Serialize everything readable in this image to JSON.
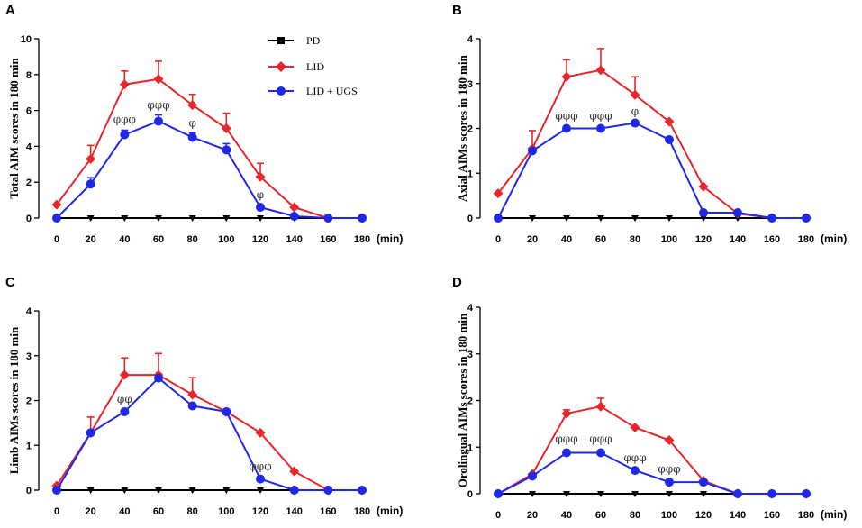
{
  "legend": [
    {
      "label": "PD",
      "color": "#000000",
      "marker": "square"
    },
    {
      "label": "LID",
      "color": "#e8252b",
      "marker": "diamond"
    },
    {
      "label": "LID + UGS",
      "color": "#1f27e8",
      "marker": "circle"
    }
  ],
  "x_unit": "(min)",
  "chart_data": [
    {
      "panel": "A",
      "type": "line",
      "ylabel": "Total AIM scores in 180 min",
      "x": [
        0,
        20,
        40,
        60,
        80,
        100,
        120,
        140,
        160,
        180
      ],
      "xticks": [
        "0",
        "20",
        "40",
        "60",
        "80",
        "100",
        "120",
        "140",
        "160",
        "180"
      ],
      "ylim": [
        0,
        10
      ],
      "yticks": [
        0,
        2,
        4,
        6,
        8,
        10
      ],
      "series": [
        {
          "name": "PD",
          "color": "#000000",
          "marker": "square",
          "values": [
            0,
            0,
            0,
            0,
            0,
            0,
            0,
            0,
            0,
            0
          ],
          "errors": [
            0,
            0,
            0,
            0,
            0,
            0,
            0,
            0,
            0,
            0
          ]
        },
        {
          "name": "LID",
          "color": "#e8252b",
          "marker": "diamond",
          "values": [
            0.75,
            3.3,
            7.45,
            7.75,
            6.3,
            5.0,
            2.3,
            0.6,
            0,
            0
          ],
          "errors": [
            0,
            0.75,
            0.75,
            1.0,
            0.6,
            0.85,
            0.75,
            0,
            0,
            0
          ]
        },
        {
          "name": "LID + UGS",
          "color": "#1f27e8",
          "marker": "circle",
          "values": [
            0,
            1.9,
            4.65,
            5.4,
            4.5,
            3.8,
            0.6,
            0.1,
            0,
            0
          ],
          "errors": [
            0,
            0.35,
            0.25,
            0.35,
            0.25,
            0.35,
            0,
            0,
            0,
            0
          ]
        }
      ],
      "annotations": [
        {
          "text": "φφφ",
          "x": 40,
          "y": 5.3
        },
        {
          "text": "φφφ",
          "x": 60,
          "y": 6.1
        },
        {
          "text": "φ",
          "x": 80,
          "y": 5.1
        },
        {
          "text": "φ",
          "x": 120,
          "y": 1.1
        }
      ]
    },
    {
      "panel": "B",
      "type": "line",
      "ylabel": "Axial AIMs scores in 180 min",
      "x": [
        0,
        20,
        40,
        60,
        80,
        100,
        120,
        140,
        160,
        180
      ],
      "xticks": [
        "0",
        "20",
        "40",
        "60",
        "80",
        "100",
        "120",
        "140",
        "160",
        "180"
      ],
      "ylim": [
        0,
        4
      ],
      "yticks": [
        0,
        1,
        2,
        3,
        4
      ],
      "series": [
        {
          "name": "PD",
          "color": "#000000",
          "marker": "square",
          "values": [
            0,
            0,
            0,
            0,
            0,
            0,
            0,
            0,
            0,
            0
          ],
          "errors": [
            0,
            0,
            0,
            0,
            0,
            0,
            0,
            0,
            0,
            0
          ]
        },
        {
          "name": "LID",
          "color": "#e8252b",
          "marker": "diamond",
          "values": [
            0.55,
            1.55,
            3.15,
            3.3,
            2.75,
            2.15,
            0.7,
            0.1,
            0,
            0
          ],
          "errors": [
            0,
            0.4,
            0.38,
            0.48,
            0.4,
            0,
            0,
            0,
            0,
            0
          ]
        },
        {
          "name": "LID + UGS",
          "color": "#1f27e8",
          "marker": "circle",
          "values": [
            0,
            1.5,
            2.0,
            2.0,
            2.12,
            1.75,
            0.12,
            0.12,
            0,
            0
          ],
          "errors": [
            0,
            0,
            0,
            0,
            0,
            0,
            0,
            0,
            0,
            0
          ]
        }
      ],
      "annotations": [
        {
          "text": "φφφ",
          "x": 40,
          "y": 2.2
        },
        {
          "text": "φφφ",
          "x": 60,
          "y": 2.2
        },
        {
          "text": "φ",
          "x": 80,
          "y": 2.3
        }
      ]
    },
    {
      "panel": "C",
      "type": "line",
      "ylabel": "Limb AIMs scores in 180 min",
      "x": [
        0,
        20,
        40,
        60,
        80,
        100,
        120,
        140,
        160,
        180
      ],
      "xticks": [
        "0",
        "20",
        "40",
        "60",
        "80",
        "100",
        "120",
        "140",
        "160",
        "180"
      ],
      "ylim": [
        0,
        4
      ],
      "yticks": [
        0,
        1,
        2,
        3,
        4
      ],
      "series": [
        {
          "name": "PD",
          "color": "#000000",
          "marker": "square",
          "values": [
            0,
            0,
            0,
            0,
            0,
            0,
            0,
            0,
            0,
            0
          ],
          "errors": [
            0,
            0,
            0,
            0,
            0,
            0,
            0,
            0,
            0,
            0
          ]
        },
        {
          "name": "LID",
          "color": "#e8252b",
          "marker": "diamond",
          "values": [
            0.1,
            1.28,
            2.57,
            2.57,
            2.13,
            1.75,
            1.28,
            0.42,
            0,
            0
          ],
          "errors": [
            0,
            0.35,
            0.38,
            0.48,
            0.38,
            0,
            0,
            0,
            0,
            0
          ]
        },
        {
          "name": "LID + UGS",
          "color": "#1f27e8",
          "marker": "circle",
          "values": [
            0,
            1.28,
            1.75,
            2.5,
            1.88,
            1.75,
            0.25,
            0,
            0,
            0
          ],
          "errors": [
            0,
            0,
            0,
            0,
            0,
            0,
            0,
            0,
            0,
            0
          ]
        }
      ],
      "annotations": [
        {
          "text": "φφ",
          "x": 40,
          "y": 1.95
        },
        {
          "text": "φφφ",
          "x": 120,
          "y": 0.45
        }
      ]
    },
    {
      "panel": "D",
      "type": "line",
      "ylabel": "Orolingual AIMs scores in 180 min",
      "x": [
        0,
        20,
        40,
        60,
        80,
        100,
        120,
        140,
        160,
        180
      ],
      "xticks": [
        "0",
        "20",
        "40",
        "60",
        "80",
        "100",
        "120",
        "140",
        "160",
        "180"
      ],
      "ylim": [
        0,
        4
      ],
      "yticks": [
        0,
        1,
        2,
        3,
        4
      ],
      "series": [
        {
          "name": "PD",
          "color": "#000000",
          "marker": "square",
          "values": [
            0,
            0,
            0,
            0,
            0,
            0,
            0,
            0,
            0,
            0
          ],
          "errors": [
            0,
            0,
            0,
            0,
            0,
            0,
            0,
            0,
            0,
            0
          ]
        },
        {
          "name": "LID",
          "color": "#e8252b",
          "marker": "diamond",
          "values": [
            0,
            0.42,
            1.72,
            1.87,
            1.42,
            1.15,
            0.28,
            0,
            0,
            0
          ],
          "errors": [
            0,
            0,
            0.08,
            0.18,
            0,
            0,
            0,
            0,
            0,
            0
          ]
        },
        {
          "name": "LID + UGS",
          "color": "#1f27e8",
          "marker": "circle",
          "values": [
            0,
            0.38,
            0.88,
            0.88,
            0.5,
            0.25,
            0.25,
            0,
            0,
            0
          ],
          "errors": [
            0,
            0,
            0,
            0,
            0,
            0,
            0,
            0,
            0,
            0
          ]
        }
      ],
      "annotations": [
        {
          "text": "φφφ",
          "x": 40,
          "y": 1.1
        },
        {
          "text": "φφφ",
          "x": 60,
          "y": 1.1
        },
        {
          "text": "φφφ",
          "x": 80,
          "y": 0.7
        },
        {
          "text": "φφφ",
          "x": 100,
          "y": 0.45
        }
      ]
    }
  ]
}
